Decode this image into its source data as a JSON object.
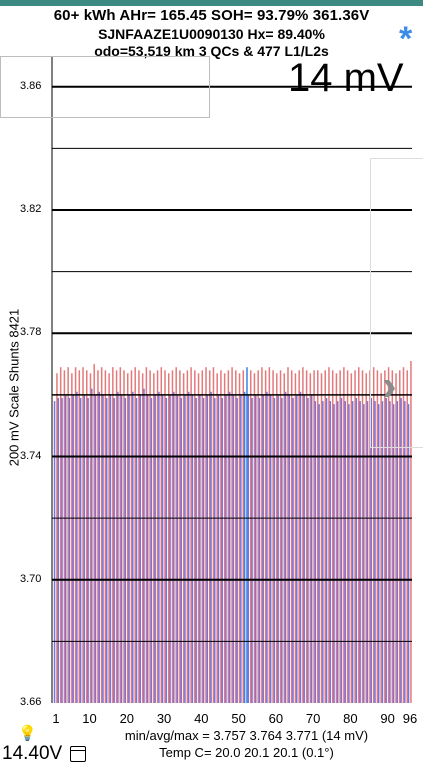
{
  "header": {
    "line1": "60+ kWh  AHr= 165.45  SOH= 93.79%   361.36V",
    "line2": "SJNFAAZE1U0090130   Hx= 89.40%",
    "line3": "odo=53,519 km 3 QCs & 477 L1/L2s"
  },
  "icons": {
    "settings": "asterisk-icon",
    "next": "chevron-right-icon",
    "tip": "lightbulb-icon",
    "calendar": "calendar-icon"
  },
  "colors": {
    "header_bar": "#3d8a82",
    "min_bar": "#7b74d8",
    "max_bar": "#e3797a",
    "highlight_bar": "#3a82e8",
    "asterisk": "#3b8ce8"
  },
  "spread_label": "14 mV",
  "footer": {
    "pack_voltage": "14.40V",
    "stats": "min/avg/max = 3.757 3.764 3.771  (14 mV)",
    "temps": "Temp C= 20.0  20.1  20.1  (0.1°)"
  },
  "chart_data": {
    "type": "bar",
    "ylabel": "200 mV Scale   Shunts 8421",
    "ylim": [
      3.66,
      3.87
    ],
    "y_ticks": [
      "3.86",
      "3.82",
      "3.78",
      "3.74",
      "3.70",
      "3.66"
    ],
    "x_ticks": [
      "1",
      "10",
      "20",
      "30",
      "40",
      "50",
      "60",
      "70",
      "80",
      "90",
      "96"
    ],
    "x": [
      1,
      2,
      3,
      4,
      5,
      6,
      7,
      8,
      9,
      10,
      11,
      12,
      13,
      14,
      15,
      16,
      17,
      18,
      19,
      20,
      21,
      22,
      23,
      24,
      25,
      26,
      27,
      28,
      29,
      30,
      31,
      32,
      33,
      34,
      35,
      36,
      37,
      38,
      39,
      40,
      41,
      42,
      43,
      44,
      45,
      46,
      47,
      48,
      49,
      50,
      51,
      52,
      53,
      54,
      55,
      56,
      57,
      58,
      59,
      60,
      61,
      62,
      63,
      64,
      65,
      66,
      67,
      68,
      69,
      70,
      71,
      72,
      73,
      74,
      75,
      76,
      77,
      78,
      79,
      80,
      81,
      82,
      83,
      84,
      85,
      86,
      87,
      88,
      89,
      90,
      91,
      92,
      93,
      94,
      95,
      96
    ],
    "series": [
      {
        "values": [
          3.758,
          3.759,
          3.759,
          3.76,
          3.759,
          3.76,
          3.761,
          3.759,
          3.76,
          3.759,
          3.762,
          3.76,
          3.761,
          3.76,
          3.759,
          3.76,
          3.759,
          3.761,
          3.76,
          3.759,
          3.76,
          3.761,
          3.759,
          3.76,
          3.762,
          3.76,
          3.759,
          3.76,
          3.761,
          3.76,
          3.759,
          3.76,
          3.761,
          3.76,
          3.759,
          3.76,
          3.761,
          3.76,
          3.759,
          3.76,
          3.759,
          3.76,
          3.761,
          3.759,
          3.76,
          3.759,
          3.76,
          3.761,
          3.76,
          3.759,
          3.76,
          3.761,
          3.76,
          3.759,
          3.76,
          3.759,
          3.76,
          3.761,
          3.76,
          3.759,
          3.76,
          3.759,
          3.761,
          3.76,
          3.759,
          3.76,
          3.761,
          3.76,
          3.759,
          3.76,
          3.758,
          3.757,
          3.758,
          3.759,
          3.758,
          3.757,
          3.758,
          3.759,
          3.758,
          3.757,
          3.758,
          3.759,
          3.758,
          3.757,
          3.758,
          3.759,
          3.758,
          3.757,
          3.758,
          3.759,
          3.758,
          3.757,
          3.758,
          3.759,
          3.758,
          3.757
        ]
      },
      {
        "values": [
          3.767,
          3.769,
          3.768,
          3.769,
          3.767,
          3.769,
          3.768,
          3.769,
          3.768,
          3.767,
          3.77,
          3.768,
          3.769,
          3.768,
          3.767,
          3.769,
          3.768,
          3.769,
          3.768,
          3.767,
          3.768,
          3.769,
          3.768,
          3.767,
          3.769,
          3.768,
          3.767,
          3.768,
          3.769,
          3.768,
          3.767,
          3.768,
          3.769,
          3.768,
          3.767,
          3.768,
          3.769,
          3.768,
          3.767,
          3.768,
          3.769,
          3.768,
          3.769,
          3.767,
          3.768,
          3.767,
          3.768,
          3.769,
          3.768,
          3.767,
          3.768,
          3.769,
          3.768,
          3.767,
          3.768,
          3.769,
          3.768,
          3.769,
          3.768,
          3.767,
          3.768,
          3.767,
          3.769,
          3.768,
          3.767,
          3.768,
          3.769,
          3.768,
          3.767,
          3.768,
          3.768,
          3.767,
          3.768,
          3.769,
          3.768,
          3.767,
          3.768,
          3.769,
          3.768,
          3.767,
          3.768,
          3.769,
          3.768,
          3.767,
          3.768,
          3.769,
          3.768,
          3.767,
          3.768,
          3.769,
          3.768,
          3.767,
          3.768,
          3.769,
          3.768,
          3.771
        ]
      }
    ],
    "highlighted_cell": 52,
    "grid": "horizontal"
  }
}
